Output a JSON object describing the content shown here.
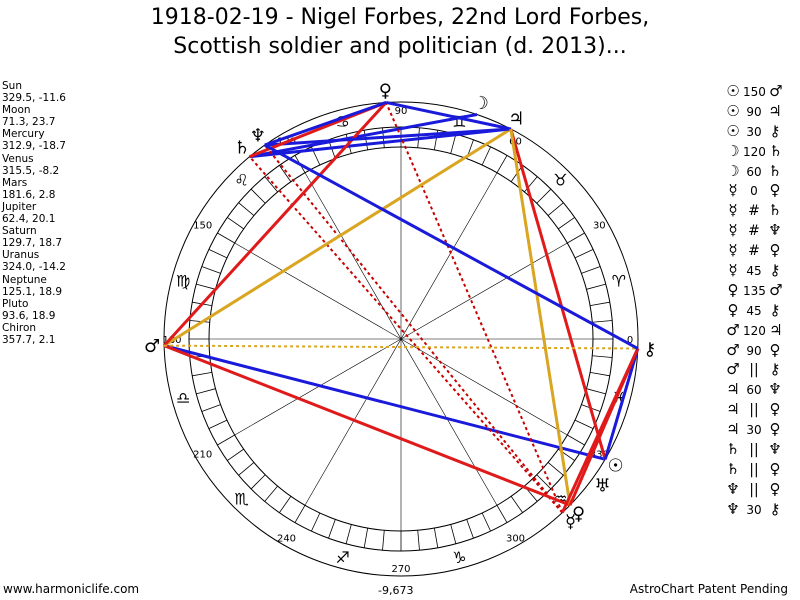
{
  "title": {
    "line1": "1918-02-19 - Nigel Forbes, 22nd Lord Forbes,",
    "line2": "Scottish soldier and politician (d. 2013)..."
  },
  "planets": [
    {
      "name": "Sun",
      "coords": "329.5, -11.6"
    },
    {
      "name": "Moon",
      "coords": "71.3, 23.7"
    },
    {
      "name": "Mercury",
      "coords": "312.9, -18.7"
    },
    {
      "name": "Venus",
      "coords": "315.5, -8.2"
    },
    {
      "name": "Mars",
      "coords": "181.6, 2.8"
    },
    {
      "name": "Jupiter",
      "coords": "62.4, 20.1"
    },
    {
      "name": "Saturn",
      "coords": "129.7, 18.7"
    },
    {
      "name": "Uranus",
      "coords": "324.0, -14.2"
    },
    {
      "name": "Neptune",
      "coords": "125.1, 18.9"
    },
    {
      "name": "Pluto",
      "coords": "93.6, 18.9"
    },
    {
      "name": "Chiron",
      "coords": "357.7, 2.1"
    }
  ],
  "aspects": [
    {
      "p1": "☉",
      "aspect": "150",
      "p2": "♂"
    },
    {
      "p1": "☉",
      "aspect": "90",
      "p2": "♃"
    },
    {
      "p1": "☉",
      "aspect": "30",
      "p2": "⚷"
    },
    {
      "p1": "☽",
      "aspect": "120",
      "p2": "♄"
    },
    {
      "p1": "☽",
      "aspect": "60",
      "p2": "♄"
    },
    {
      "p1": "☿",
      "aspect": "0",
      "p2": "♀"
    },
    {
      "p1": "☿",
      "aspect": "#",
      "p2": "♄"
    },
    {
      "p1": "☿",
      "aspect": "#",
      "p2": "♆"
    },
    {
      "p1": "☿",
      "aspect": "#",
      "p2": "♀"
    },
    {
      "p1": "☿",
      "aspect": "45",
      "p2": "⚷"
    },
    {
      "p1": "♀",
      "aspect": "135",
      "p2": "♂"
    },
    {
      "p1": "♀",
      "aspect": "45",
      "p2": "⚷"
    },
    {
      "p1": "♂",
      "aspect": "120",
      "p2": "♃"
    },
    {
      "p1": "♂",
      "aspect": "90",
      "p2": "♀"
    },
    {
      "p1": "♂",
      "aspect": "||",
      "p2": "⚷"
    },
    {
      "p1": "♃",
      "aspect": "60",
      "p2": "♆"
    },
    {
      "p1": "♃",
      "aspect": "||",
      "p2": "♀"
    },
    {
      "p1": "♃",
      "aspect": "30",
      "p2": "♀"
    },
    {
      "p1": "♄",
      "aspect": "||",
      "p2": "♆"
    },
    {
      "p1": "♄",
      "aspect": "||",
      "p2": "♀"
    },
    {
      "p1": "♆",
      "aspect": "||",
      "p2": "♀"
    },
    {
      "p1": "♆",
      "aspect": "30",
      "p2": "⚷"
    }
  ],
  "wheel": {
    "degree_labels": [
      "0",
      "30",
      "60",
      "90",
      "120",
      "150",
      "180",
      "210",
      "240",
      "270",
      "300",
      "330"
    ],
    "sign_glyphs": [
      "♈",
      "♉",
      "♊",
      "♋",
      "♌",
      "♍",
      "♎",
      "♏",
      "♐",
      "♑",
      "♒",
      "♓"
    ],
    "planet_glyphs": [
      {
        "glyph": "☉",
        "lon": 329.5
      },
      {
        "glyph": "☽",
        "lon": 71.3
      },
      {
        "glyph": "☿",
        "lon": 312.9
      },
      {
        "glyph": "♀",
        "lon": 315.5
      },
      {
        "glyph": "♂",
        "lon": 181.6
      },
      {
        "glyph": "♃",
        "lon": 62.4
      },
      {
        "glyph": "♄",
        "lon": 129.7
      },
      {
        "glyph": "♅",
        "lon": 324.0
      },
      {
        "glyph": "♆",
        "lon": 125.1
      },
      {
        "glyph": "♀",
        "lon": 93.6
      },
      {
        "glyph": "⚷",
        "lon": 357.7
      }
    ],
    "aspect_lines": [
      {
        "a": 329.5,
        "b": 181.6,
        "color": "#1a1adb",
        "dash": false
      },
      {
        "a": 329.5,
        "b": 62.4,
        "color": "#e01a1a",
        "dash": false
      },
      {
        "a": 329.5,
        "b": 357.7,
        "color": "#1a1adb",
        "dash": false
      },
      {
        "a": 71.3,
        "b": 129.7,
        "color": "#1a1adb",
        "dash": false
      },
      {
        "a": 62.4,
        "b": 129.7,
        "color": "#1a1adb",
        "dash": false
      },
      {
        "a": 312.9,
        "b": 93.6,
        "color": "#c80000",
        "dash": true
      },
      {
        "a": 312.9,
        "b": 129.7,
        "color": "#c80000",
        "dash": true
      },
      {
        "a": 312.9,
        "b": 125.1,
        "color": "#c80000",
        "dash": true
      },
      {
        "a": 315.5,
        "b": 181.6,
        "color": "#e01a1a",
        "dash": false
      },
      {
        "a": 181.6,
        "b": 62.4,
        "color": "#daa520",
        "dash": false
      },
      {
        "a": 181.6,
        "b": 93.6,
        "color": "#e01a1a",
        "dash": false
      },
      {
        "a": 181.6,
        "b": 357.7,
        "color": "#daa520",
        "dash": true
      },
      {
        "a": 62.4,
        "b": 125.1,
        "color": "#1a1adb",
        "dash": false
      },
      {
        "a": 62.4,
        "b": 93.6,
        "color": "#1a1adb",
        "dash": false
      },
      {
        "a": 62.4,
        "b": 315.5,
        "color": "#daa520",
        "dash": false
      },
      {
        "a": 129.7,
        "b": 93.6,
        "color": "#e01a1a",
        "dash": false
      },
      {
        "a": 125.1,
        "b": 93.6,
        "color": "#1a1adb",
        "dash": false
      },
      {
        "a": 315.5,
        "b": 357.7,
        "color": "#e01a1a",
        "dash": false
      },
      {
        "a": 312.9,
        "b": 357.7,
        "color": "#e01a1a",
        "dash": false
      },
      {
        "a": 125.1,
        "b": 357.7,
        "color": "#1a1adb",
        "dash": false
      }
    ]
  },
  "footer": {
    "left": "www.harmoniclife.com",
    "center": "-9,673",
    "right": "AstroChart Patent Pending"
  }
}
